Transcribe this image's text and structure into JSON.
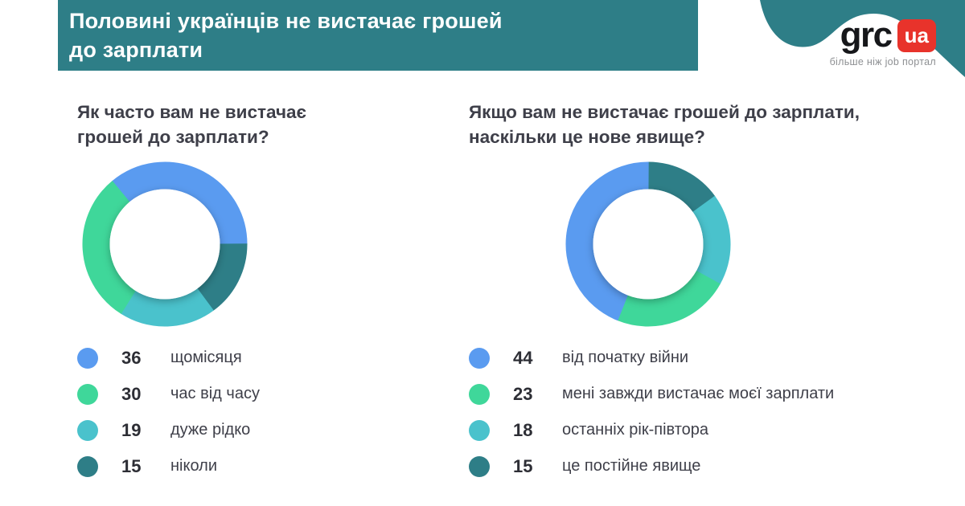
{
  "header": {
    "title_lines": [
      "Половині українців не вистачає грошей",
      "до зарплати"
    ]
  },
  "logo": {
    "name": "grc",
    "badge": "ua",
    "tagline": "більше ніж job портал"
  },
  "colors": {
    "teal": "#2e7e87",
    "blue": "#5a9bf0",
    "green": "#3fd79a",
    "cyan": "#4ac2cc",
    "red": "#e8332b"
  },
  "chart_data": [
    {
      "type": "pie",
      "variant": "donut",
      "title_lines": [
        "Як часто вам не вистачає",
        "грошей до зарплати?"
      ],
      "legend_position": "bottom-left",
      "start_angle": -40,
      "draw_order": [
        0,
        3,
        2,
        1
      ],
      "segments": [
        {
          "label": "щомісяця",
          "value": 36,
          "color": "#5a9bf0"
        },
        {
          "label": "час від часу",
          "value": 30,
          "color": "#3fd79a"
        },
        {
          "label": "дуже рідко",
          "value": 19,
          "color": "#4ac2cc"
        },
        {
          "label": "ніколи",
          "value": 15,
          "color": "#2e7e87"
        }
      ]
    },
    {
      "type": "pie",
      "variant": "donut",
      "title_lines": [
        "Якщо вам не вистачає грошей до зарплати,",
        "наскільки це нове явище?"
      ],
      "legend_position": "bottom-left",
      "start_angle": 0,
      "draw_order": [
        3,
        2,
        1,
        0
      ],
      "segments": [
        {
          "label": "від початку війни",
          "value": 44,
          "color": "#5a9bf0"
        },
        {
          "label": "мені завжди вистачає моєї зарплати",
          "value": 23,
          "color": "#3fd79a"
        },
        {
          "label": "останніх рік-півтора",
          "value": 18,
          "color": "#4ac2cc"
        },
        {
          "label": "це постійне явище",
          "value": 15,
          "color": "#2e7e87"
        }
      ]
    }
  ]
}
